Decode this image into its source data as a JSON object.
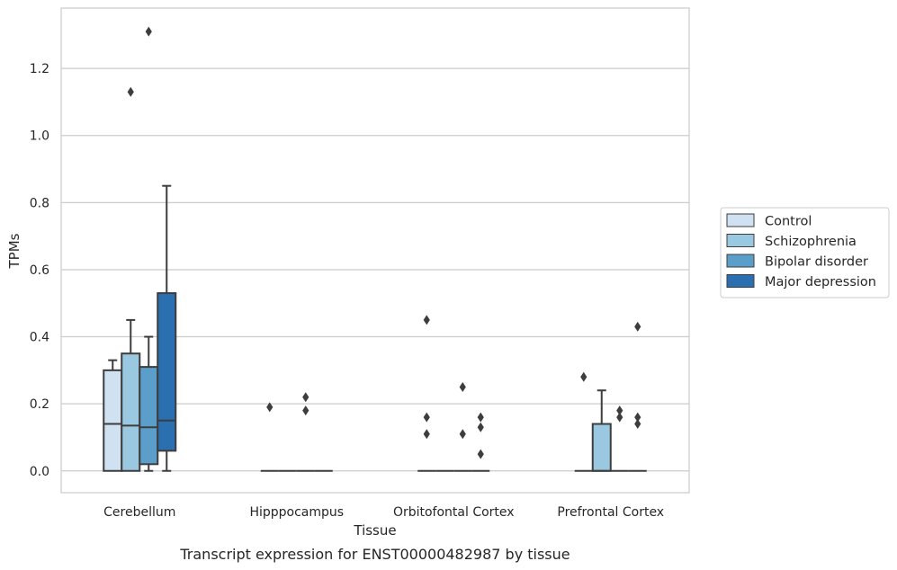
{
  "chart_data": {
    "type": "box",
    "title": "",
    "caption": "Transcript expression for ENST00000482987 by tissue",
    "xlabel": "Tissue",
    "ylabel": "TPMs",
    "ylim": [
      -0.065,
      1.38
    ],
    "yticks": [
      0.0,
      0.2,
      0.4,
      0.6,
      0.8,
      1.0,
      1.2
    ],
    "grid": "horizontal",
    "legend_position": "right",
    "categories": [
      "Cerebellum",
      "Hipppocampus",
      "Orbitofontal Cortex",
      "Prefrontal Cortex"
    ],
    "series": [
      {
        "name": "Control",
        "color": "#d0e1f2",
        "boxes": [
          {
            "q1": 0.0,
            "median": 0.14,
            "q3": 0.3,
            "whisker_low": 0.0,
            "whisker_high": 0.33,
            "outliers": []
          },
          {
            "q1": 0.0,
            "median": 0.0,
            "q3": 0.0,
            "whisker_low": 0.0,
            "whisker_high": 0.0,
            "outliers": [
              0.19
            ]
          },
          {
            "q1": 0.0,
            "median": 0.0,
            "q3": 0.0,
            "whisker_low": 0.0,
            "whisker_high": 0.0,
            "outliers": [
              0.11,
              0.16,
              0.45
            ]
          },
          {
            "q1": 0.0,
            "median": 0.0,
            "q3": 0.0,
            "whisker_low": 0.0,
            "whisker_high": 0.0,
            "outliers": [
              0.28
            ]
          }
        ]
      },
      {
        "name": "Schizophrenia",
        "color": "#9ac8e0",
        "boxes": [
          {
            "q1": 0.0,
            "median": 0.135,
            "q3": 0.35,
            "whisker_low": 0.0,
            "whisker_high": 0.45,
            "outliers": [
              1.13
            ]
          },
          {
            "q1": 0.0,
            "median": 0.0,
            "q3": 0.0,
            "whisker_low": 0.0,
            "whisker_high": 0.0,
            "outliers": []
          },
          {
            "q1": 0.0,
            "median": 0.0,
            "q3": 0.0,
            "whisker_low": 0.0,
            "whisker_high": 0.0,
            "outliers": []
          },
          {
            "q1": 0.0,
            "median": 0.0,
            "q3": 0.14,
            "whisker_low": 0.0,
            "whisker_high": 0.24,
            "outliers": []
          }
        ]
      },
      {
        "name": "Bipolar disorder",
        "color": "#5a9ec9",
        "boxes": [
          {
            "q1": 0.02,
            "median": 0.13,
            "q3": 0.31,
            "whisker_low": 0.0,
            "whisker_high": 0.4,
            "outliers": [
              1.31
            ]
          },
          {
            "q1": 0.0,
            "median": 0.0,
            "q3": 0.0,
            "whisker_low": 0.0,
            "whisker_high": 0.0,
            "outliers": [
              0.18,
              0.22
            ]
          },
          {
            "q1": 0.0,
            "median": 0.0,
            "q3": 0.0,
            "whisker_low": 0.0,
            "whisker_high": 0.0,
            "outliers": [
              0.11,
              0.25
            ]
          },
          {
            "q1": 0.0,
            "median": 0.0,
            "q3": 0.0,
            "whisker_low": 0.0,
            "whisker_high": 0.0,
            "outliers": [
              0.16,
              0.18
            ]
          }
        ]
      },
      {
        "name": "Major depression",
        "color": "#2a6fb0",
        "boxes": [
          {
            "q1": 0.06,
            "median": 0.15,
            "q3": 0.53,
            "whisker_low": 0.0,
            "whisker_high": 0.85,
            "outliers": []
          },
          {
            "q1": 0.0,
            "median": 0.0,
            "q3": 0.0,
            "whisker_low": 0.0,
            "whisker_high": 0.0,
            "outliers": []
          },
          {
            "q1": 0.0,
            "median": 0.0,
            "q3": 0.0,
            "whisker_low": 0.0,
            "whisker_high": 0.0,
            "outliers": [
              0.05,
              0.13,
              0.16
            ]
          },
          {
            "q1": 0.0,
            "median": 0.0,
            "q3": 0.0,
            "whisker_low": 0.0,
            "whisker_high": 0.0,
            "outliers": [
              0.14,
              0.16,
              0.43
            ]
          }
        ]
      }
    ]
  }
}
